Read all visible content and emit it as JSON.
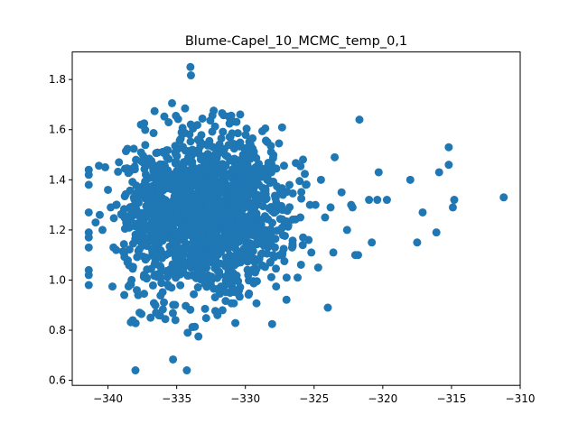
{
  "chart_data": {
    "type": "scatter",
    "title": "Blume-Capel_10_MCMC_temp_0,1",
    "xlabel": "",
    "ylabel": "",
    "xlim": [
      -342.6,
      -310.0
    ],
    "ylim": [
      0.58,
      1.91
    ],
    "x_ticks": [
      -340,
      -335,
      -330,
      -325,
      -320,
      -315,
      -310
    ],
    "x_tick_labels": [
      "−340",
      "−335",
      "−330",
      "−325",
      "−320",
      "−315",
      "−310"
    ],
    "y_ticks": [
      0.6,
      0.8,
      1.0,
      1.2,
      1.4,
      1.6,
      1.8
    ],
    "y_tick_labels": [
      "0.6",
      "0.8",
      "1.0",
      "1.2",
      "1.4",
      "1.6",
      "1.8"
    ],
    "grid": false,
    "marker_color": "#1f77b4",
    "outliers": {
      "x": [
        -311.2,
        -314.8,
        -314.9,
        -315.2,
        -315.2,
        -315.9,
        -316.1,
        -317.1,
        -317.5,
        -318.0,
        -319.7,
        -320.3,
        -320.4,
        -320.8,
        -321.0,
        -321.7,
        -321.8,
        -322.0,
        -322.2,
        -322.3,
        -322.6,
        -323.0,
        -323.5,
        -323.6,
        -323.8,
        -324.0,
        -324.2,
        -324.5,
        -324.7,
        -324.9,
        -325.2,
        -325.3,
        -325.4,
        -325.6,
        -325.8,
        -326.0,
        -326.2,
        -326.6,
        -327.0,
        -327.3,
        -341.4,
        -341.4,
        -341.4,
        -341.4,
        -341.4,
        -341.4,
        -341.4,
        -341.4,
        -341.4,
        -341.4,
        -340.9,
        -340.6,
        -340.4,
        -340.2,
        -340.0,
        -339.8,
        -339.6,
        -339.4,
        -339.2,
        -339.0,
        -338.2,
        -338.0,
        -337.9,
        -337.8,
        -337.7,
        -337.6,
        -336.9,
        -336.5,
        -334.2,
        -334.0
      ],
      "y": [
        1.33,
        1.32,
        1.29,
        1.53,
        1.46,
        1.43,
        1.19,
        1.27,
        1.15,
        1.4,
        1.32,
        1.43,
        1.32,
        1.15,
        1.32,
        1.64,
        1.1,
        1.1,
        1.29,
        1.3,
        1.2,
        1.35,
        1.49,
        1.11,
        1.29,
        0.89,
        1.25,
        1.4,
        1.05,
        1.3,
        1.11,
        1.3,
        1.16,
        1.38,
        1.17,
        1.25,
        1.01,
        1.13,
        1.01,
        1.28,
        1.44,
        1.42,
        1.38,
        1.27,
        1.19,
        1.13,
        1.04,
        1.02,
        0.98,
        1.17,
        1.23,
        1.26,
        1.2,
        1.45,
        1.36,
        1.29,
        1.13,
        1.12,
        1.47,
        1.26,
        0.84,
        0.64,
        0.96,
        0.94,
        0.87,
        1.62,
        0.85,
        0.87,
        0.79,
        1.85
      ]
    },
    "clusters": [
      {
        "cx": -333.0,
        "cy": 1.26,
        "sx": 2.2,
        "sy": 0.17,
        "n": 900
      },
      {
        "cx": -330.0,
        "cy": 1.3,
        "sx": 1.6,
        "sy": 0.15,
        "n": 250
      },
      {
        "cx": -336.2,
        "cy": 1.24,
        "sx": 1.0,
        "sy": 0.16,
        "n": 220
      },
      {
        "cx": -328.2,
        "cy": 1.28,
        "sx": 1.2,
        "sy": 0.12,
        "n": 80
      },
      {
        "cx": -338.4,
        "cy": 1.25,
        "sx": 0.5,
        "sy": 0.18,
        "n": 60
      }
    ]
  }
}
